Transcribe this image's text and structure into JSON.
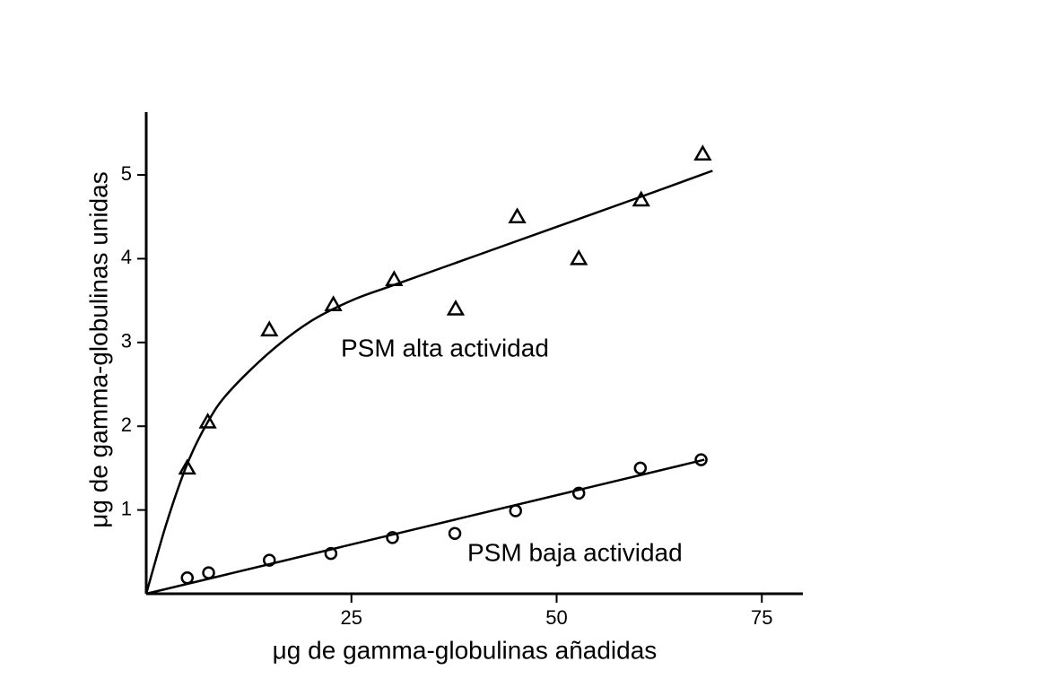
{
  "chart_data": {
    "type": "scatter",
    "xlabel": "μg de gamma-globulinas añadidas",
    "ylabel": "μg de gamma-globulinas unidas",
    "xlim": [
      0,
      80
    ],
    "ylim": [
      0,
      5.75
    ],
    "xticks": [
      25,
      50,
      75
    ],
    "yticks": [
      1,
      2,
      3,
      4,
      5
    ],
    "grid": false,
    "series": [
      {
        "name": "PSM alta actividad",
        "color": "#000000",
        "marker": "triangle",
        "x": [
          5,
          7.5,
          15,
          22.8,
          30.2,
          37.7,
          45.2,
          52.7,
          60.3,
          67.8
        ],
        "values": [
          1.5,
          2.05,
          3.15,
          3.45,
          3.75,
          3.4,
          4.5,
          4.0,
          4.7,
          5.25
        ],
        "fit": {
          "x": [
            0,
            2.5,
            5,
            7.5,
            10,
            15,
            20,
            25,
            30,
            40,
            50,
            60,
            69
          ],
          "values": [
            0,
            0.85,
            1.55,
            2.05,
            2.4,
            2.88,
            3.25,
            3.5,
            3.68,
            4.03,
            4.38,
            4.73,
            5.05
          ]
        }
      },
      {
        "name": "PSM baja actividad",
        "color": "#000000",
        "marker": "circle",
        "x": [
          5,
          7.6,
          15,
          22.5,
          30,
          37.6,
          45,
          52.7,
          60.2,
          67.6
        ],
        "values": [
          0.19,
          0.25,
          0.4,
          0.48,
          0.67,
          0.72,
          0.99,
          1.2,
          1.5,
          1.6
        ],
        "fit": {
          "x": [
            0,
            68
          ],
          "values": [
            0,
            1.6
          ]
        }
      }
    ]
  }
}
